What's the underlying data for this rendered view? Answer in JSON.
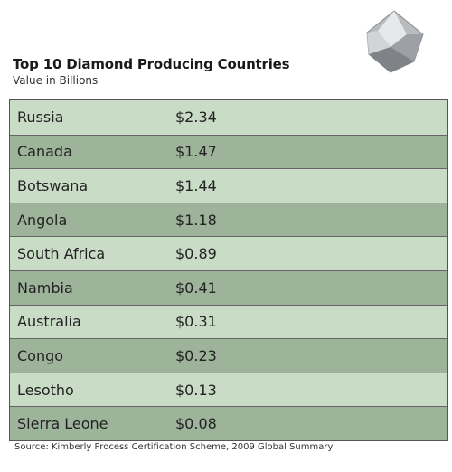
{
  "header": {
    "title": "Top 10 Diamond Producing Countries",
    "subtitle": "Value in Billions"
  },
  "table": {
    "rows": [
      [
        "Russia",
        "$2.34"
      ],
      [
        "Canada",
        "$1.47"
      ],
      [
        "Botswana",
        "$1.44"
      ],
      [
        "Angola",
        "$1.18"
      ],
      [
        "South Africa",
        "$0.89"
      ],
      [
        "Nambia",
        "$0.41"
      ],
      [
        "Australia",
        "$0.31"
      ],
      [
        "Congo",
        "$0.23"
      ],
      [
        "Lesotho",
        "$0.13"
      ],
      [
        "Sierra Leone",
        "$0.08"
      ]
    ]
  },
  "footer": {
    "source": "Source: Kimberly Process Certification Scheme, 2009 Global Summary"
  }
}
